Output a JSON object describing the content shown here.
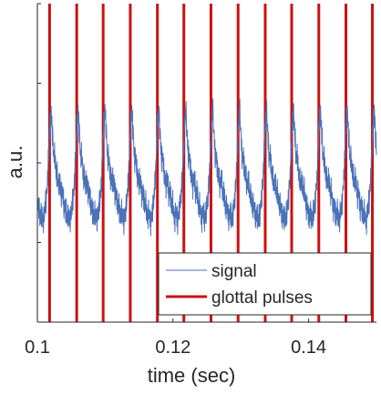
{
  "chart_data": {
    "type": "line",
    "title": "",
    "xlabel": "time (sec)",
    "ylabel": "a.u.",
    "xlim": [
      0.1,
      0.15
    ],
    "ylim": [
      -1.0,
      1.0
    ],
    "x_ticks": [
      0.1,
      0.12,
      0.14
    ],
    "x_tick_labels": [
      "0.1",
      "0.12",
      "0.14"
    ],
    "y_ticks": [
      -1.0,
      -0.5,
      0.0,
      0.5,
      1.0
    ],
    "y_tick_labels": [
      "",
      "",
      "",
      "",
      ""
    ],
    "grid": false,
    "legend_position": "bottom-right",
    "colors": {
      "signal": "#4a72b8",
      "pulses": "#cc1111",
      "axis": "#262626"
    },
    "series": [
      {
        "name": "signal",
        "kind": "line",
        "pitch_period_sec": 0.00397,
        "first_pulse_sec": 0.1018,
        "cycle_shape": [
          [
            0.0,
            0.2
          ],
          [
            0.03,
            0.27
          ],
          [
            0.06,
            0.33
          ],
          [
            0.09,
            0.24
          ],
          [
            0.12,
            0.14
          ],
          [
            0.16,
            0.02
          ],
          [
            0.2,
            0.05
          ],
          [
            0.24,
            -0.06
          ],
          [
            0.28,
            -0.08
          ],
          [
            0.33,
            -0.14
          ],
          [
            0.38,
            -0.1
          ],
          [
            0.43,
            -0.2
          ],
          [
            0.48,
            -0.18
          ],
          [
            0.53,
            -0.28
          ],
          [
            0.58,
            -0.26
          ],
          [
            0.64,
            -0.35
          ],
          [
            0.7,
            -0.31
          ],
          [
            0.76,
            -0.37
          ],
          [
            0.82,
            -0.3
          ],
          [
            0.88,
            -0.22
          ],
          [
            0.92,
            -0.12
          ],
          [
            0.96,
            0.02
          ],
          [
            1.0,
            0.2
          ]
        ]
      },
      {
        "name": "glottal pulses",
        "kind": "vertical-lines",
        "x": [
          0.1018,
          0.1058,
          0.1097,
          0.1137,
          0.1177,
          0.1216,
          0.1256,
          0.1296,
          0.1336,
          0.1375,
          0.1415,
          0.1455,
          0.1494
        ]
      }
    ]
  }
}
